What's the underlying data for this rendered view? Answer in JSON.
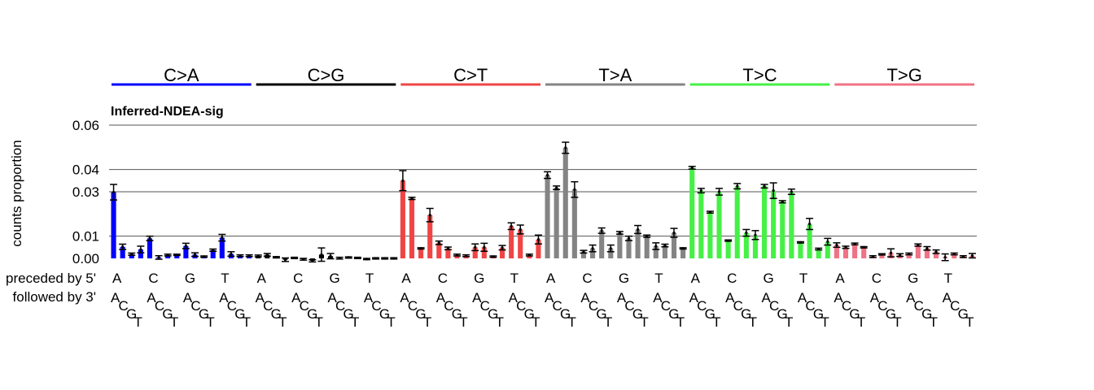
{
  "chart_data": {
    "type": "bar",
    "title": "Inferred-NDEA-sig",
    "ylabel": "counts proportion",
    "ylim": [
      0,
      0.06
    ],
    "yticks": [
      0,
      0.01,
      0.03,
      0.04,
      0.06
    ],
    "ytick_labels": [
      "0.00",
      "0.01",
      "0.03",
      "0.04",
      "0.06"
    ],
    "grid": true,
    "row_labels": {
      "preceded": "preceded by 5'",
      "followed": "followed by 3'"
    },
    "bases": [
      "A",
      "C",
      "G",
      "T"
    ],
    "groups": [
      {
        "name": "C>A",
        "color": "#0000FF"
      },
      {
        "name": "C>G",
        "color": "#000000"
      },
      {
        "name": "C>T",
        "color": "#F04545"
      },
      {
        "name": "T>A",
        "color": "#848484"
      },
      {
        "name": "T>C",
        "color": "#46F046"
      },
      {
        "name": "T>G",
        "color": "#F07284"
      }
    ],
    "values": [
      0.0298,
      0.0052,
      0.0019,
      0.004,
      0.009,
      0.0004,
      0.0015,
      0.0016,
      0.0056,
      0.0017,
      0.0008,
      0.0037,
      0.0093,
      0.002,
      0.0012,
      0.0012,
      0.0011,
      0.0016,
      0.0005,
      -0.0006,
      0.0002,
      -0.0004,
      -0.0011,
      0.0017,
      0.001,
      0.0001,
      0.0004,
      0.0002,
      -0.0003,
      0.0,
      0.0,
      0.0,
      0.035,
      0.027,
      0.0045,
      0.0195,
      0.007,
      0.0045,
      0.0015,
      0.0012,
      0.005,
      0.005,
      0.0008,
      0.0048,
      0.0145,
      0.013,
      0.0015,
      0.0085,
      0.0375,
      0.0318,
      0.0498,
      0.031,
      0.003,
      0.0045,
      0.0125,
      0.0045,
      0.0115,
      0.009,
      0.013,
      0.01,
      0.0055,
      0.0058,
      0.0115,
      0.0045,
      0.0408,
      0.0305,
      0.0208,
      0.03,
      0.008,
      0.0325,
      0.0115,
      0.0105,
      0.0325,
      0.0305,
      0.0255,
      0.03,
      0.0072,
      0.0155,
      0.0042,
      0.0075,
      0.006,
      0.005,
      0.0065,
      0.005,
      0.0008,
      0.0018,
      0.0025,
      0.0015,
      0.002,
      0.006,
      0.0045,
      0.003,
      0.0005,
      0.002,
      0.0008,
      0.0012
    ],
    "errors": [
      0.0035,
      0.0012,
      0.0005,
      0.0015,
      0.001,
      0.0008,
      0.0004,
      0.0003,
      0.0012,
      0.0008,
      0.0003,
      0.0005,
      0.0015,
      0.001,
      0.0004,
      0.0004,
      0.0004,
      0.0006,
      0.0003,
      0.0008,
      0.0003,
      0.0004,
      0.0005,
      0.003,
      0.0012,
      0.0004,
      0.0003,
      0.0003,
      0.0003,
      0.0003,
      0.0003,
      0.0003,
      0.0045,
      0.0005,
      0.0003,
      0.003,
      0.0008,
      0.0006,
      0.0004,
      0.0004,
      0.0015,
      0.0018,
      0.0003,
      0.001,
      0.0015,
      0.002,
      0.0004,
      0.002,
      0.0015,
      0.0008,
      0.0025,
      0.0035,
      0.0006,
      0.0015,
      0.0012,
      0.0015,
      0.0006,
      0.001,
      0.0018,
      0.0005,
      0.0015,
      0.0006,
      0.002,
      0.0003,
      0.0006,
      0.001,
      0.0004,
      0.0015,
      0.0003,
      0.0012,
      0.0015,
      0.002,
      0.0008,
      0.0035,
      0.0005,
      0.0012,
      0.0003,
      0.0025,
      0.0004,
      0.0015,
      0.001,
      0.0005,
      0.0004,
      0.0003,
      0.0004,
      0.0003,
      0.0018,
      0.0006,
      0.0004,
      0.0005,
      0.0008,
      0.0008,
      0.0015,
      0.0004,
      0.0004,
      0.001
    ]
  }
}
